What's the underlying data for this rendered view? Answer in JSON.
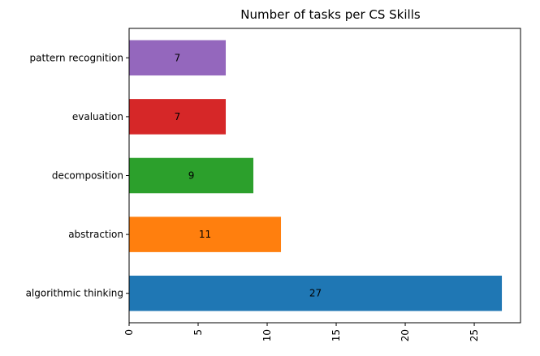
{
  "chart_data": {
    "type": "bar",
    "orientation": "horizontal",
    "title": "Number of tasks per CS Skills",
    "xlabel": "",
    "ylabel": "",
    "categories": [
      "algorithmic thinking",
      "abstraction",
      "decomposition",
      "evaluation",
      "pattern recognition"
    ],
    "values": [
      27,
      11,
      9,
      7,
      7
    ],
    "colors": [
      "#1f77b4",
      "#ff7f0e",
      "#2ca02c",
      "#d62728",
      "#9467bd"
    ],
    "xlim": [
      0,
      28.35
    ],
    "xticks": [
      0,
      5,
      10,
      15,
      20,
      25
    ],
    "xtick_rotation": "vertical",
    "grid": false,
    "legend": "none"
  }
}
